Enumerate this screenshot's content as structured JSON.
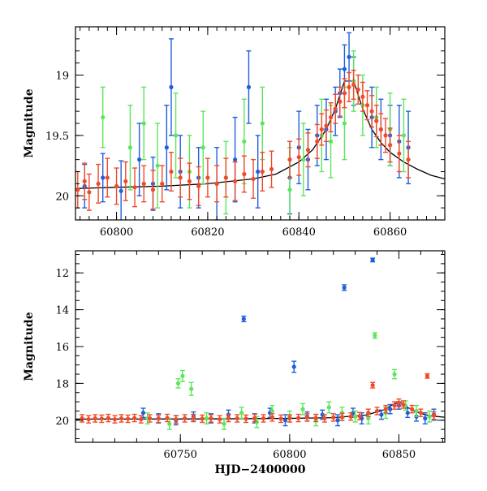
{
  "chart_data": [
    {
      "type": "scatter",
      "panel": "top",
      "xlabel": "",
      "ylabel": "Magnitude",
      "xlim": [
        60791,
        60872
      ],
      "ylim": [
        20.2,
        18.6
      ],
      "y_inverted": true,
      "xticks": [
        "60800",
        "60820",
        "60840",
        "60860"
      ],
      "yticks": [
        "19",
        "19.5",
        "20"
      ],
      "grid": false,
      "legend": "none",
      "colors": {
        "blue": "#1f5fdc",
        "green": "#5ce65c",
        "red": "#f04a2a",
        "model": "#000000"
      },
      "series": [
        {
          "color": "blue",
          "x": [
            60793,
            60797,
            60801,
            60805,
            60808,
            60811,
            60812,
            60814,
            60818,
            60822,
            60826,
            60829,
            60831,
            60838,
            60840,
            60842,
            60844,
            60846,
            60848,
            60849,
            60850,
            60851,
            60852,
            60856,
            60858,
            60860,
            60862,
            60864
          ],
          "y": [
            19.92,
            19.85,
            19.96,
            19.7,
            19.9,
            19.6,
            19.1,
            19.8,
            19.85,
            19.9,
            19.7,
            19.1,
            19.8,
            19.85,
            19.6,
            19.7,
            19.5,
            19.45,
            19.3,
            19.15,
            18.95,
            18.85,
            19.05,
            19.35,
            19.45,
            19.5,
            19.55,
            19.6
          ],
          "err": [
            0.18,
            0.2,
            0.25,
            0.3,
            0.22,
            0.35,
            0.4,
            0.3,
            0.25,
            0.3,
            0.35,
            0.3,
            0.3,
            0.3,
            0.3,
            0.25,
            0.25,
            0.25,
            0.2,
            0.2,
            0.2,
            0.2,
            0.2,
            0.25,
            0.25,
            0.25,
            0.3,
            0.3
          ]
        },
        {
          "color": "green",
          "x": [
            60797,
            60803,
            60806,
            60809,
            60813,
            60816,
            60819,
            60824,
            60828,
            60832,
            60838,
            60841,
            60845,
            60847,
            60850,
            60852,
            60854,
            60857,
            60860,
            60863
          ],
          "y": [
            19.35,
            19.6,
            19.4,
            19.75,
            19.5,
            19.8,
            19.6,
            19.85,
            19.55,
            19.4,
            19.95,
            19.7,
            19.5,
            19.55,
            19.4,
            19.05,
            19.25,
            19.35,
            19.45,
            19.5
          ],
          "err": [
            0.25,
            0.35,
            0.3,
            0.35,
            0.35,
            0.3,
            0.3,
            0.3,
            0.35,
            0.3,
            0.35,
            0.3,
            0.3,
            0.3,
            0.3,
            0.25,
            0.25,
            0.25,
            0.3,
            0.3
          ]
        },
        {
          "color": "red",
          "x": [
            60791.5,
            60793,
            60794,
            60796,
            60798,
            60800,
            60802,
            60804,
            60806,
            60808,
            60810,
            60812,
            60814,
            60816,
            60818,
            60820,
            60822,
            60824,
            60826,
            60828,
            60830,
            60832,
            60834,
            60838,
            60840,
            60842,
            60844,
            60845,
            60846,
            60847,
            60848,
            60849,
            60850,
            60851,
            60852,
            60853,
            60854,
            60855,
            60856,
            60857,
            60858,
            60859,
            60860,
            60862,
            60864
          ],
          "y": [
            19.95,
            19.88,
            19.97,
            19.9,
            19.85,
            19.92,
            19.88,
            19.93,
            19.9,
            19.95,
            19.9,
            19.8,
            19.85,
            19.88,
            19.92,
            19.85,
            19.9,
            19.85,
            19.88,
            19.82,
            19.86,
            19.8,
            19.78,
            19.7,
            19.68,
            19.62,
            19.55,
            19.45,
            19.42,
            19.35,
            19.28,
            19.22,
            19.15,
            19.1,
            19.08,
            19.12,
            19.18,
            19.25,
            19.3,
            19.38,
            19.45,
            19.5,
            19.58,
            19.65,
            19.7
          ],
          "err": [
            0.15,
            0.15,
            0.15,
            0.16,
            0.16,
            0.15,
            0.16,
            0.16,
            0.15,
            0.16,
            0.15,
            0.16,
            0.16,
            0.15,
            0.16,
            0.16,
            0.15,
            0.16,
            0.16,
            0.15,
            0.16,
            0.16,
            0.15,
            0.15,
            0.15,
            0.14,
            0.14,
            0.13,
            0.13,
            0.12,
            0.12,
            0.12,
            0.12,
            0.12,
            0.12,
            0.12,
            0.12,
            0.12,
            0.13,
            0.13,
            0.13,
            0.14,
            0.14,
            0.15,
            0.15
          ]
        }
      ],
      "model_curve": {
        "x": [
          60791,
          60800,
          60810,
          60820,
          60830,
          60835,
          60840,
          60843,
          60846,
          60848,
          60850,
          60852,
          60854,
          60856,
          60858,
          60860,
          60863,
          60866,
          60869,
          60872
        ],
        "y": [
          19.94,
          19.93,
          19.92,
          19.9,
          19.86,
          19.82,
          19.72,
          19.62,
          19.45,
          19.28,
          19.05,
          19.05,
          19.28,
          19.45,
          19.56,
          19.64,
          19.72,
          19.78,
          19.83,
          19.86
        ]
      }
    },
    {
      "type": "scatter",
      "panel": "bottom",
      "xlabel": "HJD−2400000",
      "ylabel": "Magnitude",
      "xlim": [
        60702,
        60871
      ],
      "ylim": [
        21.2,
        10.8
      ],
      "y_inverted": true,
      "xticks": [
        "60750",
        "60800",
        "60850"
      ],
      "yticks": [
        "12",
        "14",
        "16",
        "18",
        "20"
      ],
      "grid": false,
      "legend": "none",
      "series": [
        {
          "color": "blue",
          "x": [
            60733,
            60740,
            60748,
            60756,
            60764,
            60772,
            60779,
            60784,
            60791,
            60798,
            60802,
            60808,
            60815,
            60822,
            60825,
            60829,
            60833,
            60838,
            60842,
            60846,
            60850,
            60854,
            60858,
            60862,
            60866
          ],
          "y": [
            19.6,
            19.9,
            20.0,
            19.8,
            19.9,
            19.7,
            14.5,
            19.9,
            19.6,
            20.0,
            17.1,
            19.8,
            19.7,
            20.0,
            12.8,
            19.6,
            19.9,
            11.3,
            19.7,
            19.4,
            19.2,
            19.6,
            19.8,
            19.9,
            19.7
          ],
          "err": [
            0.25,
            0.25,
            0.25,
            0.25,
            0.25,
            0.25,
            0.15,
            0.25,
            0.25,
            0.3,
            0.3,
            0.25,
            0.25,
            0.3,
            0.15,
            0.25,
            0.3,
            0.1,
            0.25,
            0.25,
            0.2,
            0.25,
            0.25,
            0.3,
            0.3
          ]
        },
        {
          "color": "green",
          "x": [
            60735,
            60745,
            60749,
            60751,
            60755,
            60762,
            60770,
            60778,
            60785,
            60792,
            60800,
            60806,
            60812,
            60818,
            60824,
            60830,
            60836,
            60839,
            60844,
            60848,
            60853,
            60858,
            60864
          ],
          "y": [
            19.9,
            20.2,
            18.0,
            17.6,
            18.3,
            19.9,
            20.2,
            19.6,
            20.1,
            19.5,
            19.8,
            19.4,
            20.0,
            19.3,
            19.6,
            19.8,
            19.9,
            15.4,
            19.6,
            17.5,
            19.2,
            19.5,
            19.8
          ],
          "err": [
            0.3,
            0.3,
            0.25,
            0.3,
            0.35,
            0.3,
            0.3,
            0.3,
            0.3,
            0.3,
            0.3,
            0.3,
            0.3,
            0.3,
            0.3,
            0.3,
            0.3,
            0.15,
            0.3,
            0.25,
            0.25,
            0.3,
            0.3
          ]
        },
        {
          "color": "red",
          "x": [
            60705,
            60708,
            60711,
            60714,
            60717,
            60720,
            60723,
            60726,
            60729,
            60732,
            60736,
            60740,
            60744,
            60748,
            60752,
            60756,
            60760,
            60764,
            60768,
            60772,
            60776,
            60780,
            60784,
            60788,
            60792,
            60796,
            60800,
            60804,
            60808,
            60812,
            60816,
            60820,
            60824,
            60828,
            60832,
            60836,
            60838,
            60840,
            60844,
            60848,
            60850,
            60852,
            60856,
            60860,
            60863,
            60866
          ],
          "y": [
            19.9,
            19.95,
            19.9,
            19.92,
            19.88,
            19.95,
            19.9,
            19.92,
            19.88,
            19.95,
            19.9,
            19.92,
            19.88,
            19.95,
            19.9,
            19.88,
            19.92,
            19.9,
            19.95,
            19.88,
            19.9,
            19.92,
            19.88,
            19.9,
            19.85,
            19.92,
            19.9,
            19.88,
            19.85,
            19.88,
            19.9,
            19.85,
            19.82,
            19.8,
            19.78,
            19.6,
            18.1,
            19.5,
            19.4,
            19.2,
            19.05,
            19.15,
            19.4,
            19.6,
            17.6,
            19.75
          ],
          "err": [
            0.2,
            0.2,
            0.2,
            0.2,
            0.2,
            0.2,
            0.2,
            0.2,
            0.2,
            0.2,
            0.2,
            0.2,
            0.2,
            0.2,
            0.2,
            0.2,
            0.2,
            0.2,
            0.2,
            0.2,
            0.2,
            0.2,
            0.2,
            0.2,
            0.2,
            0.2,
            0.2,
            0.2,
            0.2,
            0.2,
            0.2,
            0.2,
            0.2,
            0.2,
            0.2,
            0.2,
            0.15,
            0.2,
            0.2,
            0.2,
            0.2,
            0.2,
            0.2,
            0.2,
            0.12,
            0.2
          ]
        }
      ],
      "model_curve": {
        "x": [
          60702,
          60760,
          60800,
          60820,
          60835,
          60843,
          60848,
          60851,
          60854,
          60858,
          60862,
          60866,
          60871
        ],
        "y": [
          19.94,
          19.93,
          19.9,
          19.86,
          19.72,
          19.45,
          19.1,
          19.05,
          19.3,
          19.55,
          19.7,
          19.78,
          19.84
        ]
      }
    }
  ]
}
